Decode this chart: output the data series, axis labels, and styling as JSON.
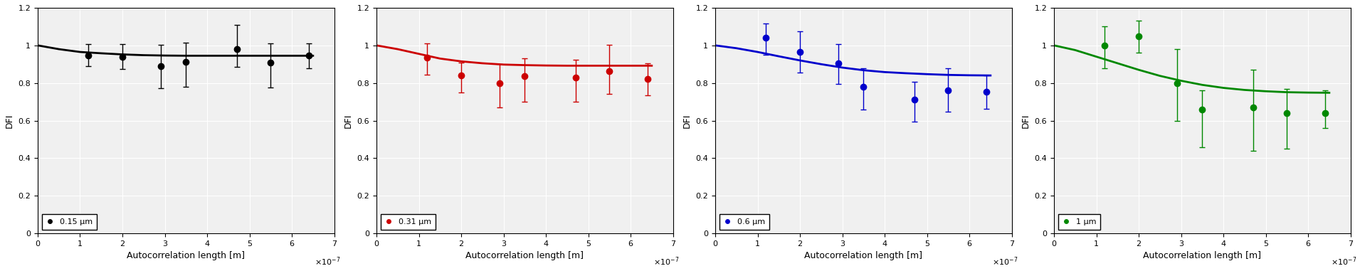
{
  "panels": [
    {
      "label": "0.15 μm",
      "color": "black",
      "x_data": [
        1.2e-07,
        2e-07,
        2.9e-07,
        3.5e-07,
        4.7e-07,
        5.5e-07,
        6.4e-07
      ],
      "y_data": [
        0.948,
        0.94,
        0.888,
        0.913,
        0.98,
        0.907,
        0.945
      ],
      "y_err_up": [
        0.06,
        0.065,
        0.115,
        0.1,
        0.13,
        0.105,
        0.065
      ],
      "y_err_dn": [
        0.06,
        0.065,
        0.115,
        0.135,
        0.095,
        0.13,
        0.065
      ],
      "curve_x": [
        0.0,
        5e-08,
        1e-07,
        1.5e-07,
        2e-07,
        2.5e-07,
        3e-07,
        3.5e-07,
        4e-07,
        4.5e-07,
        5e-07,
        5.5e-07,
        6e-07,
        6.5e-07
      ],
      "curve_y": [
        1.0,
        0.98,
        0.965,
        0.958,
        0.952,
        0.948,
        0.946,
        0.945,
        0.945,
        0.945,
        0.945,
        0.945,
        0.945,
        0.945
      ]
    },
    {
      "label": "0.31 μm",
      "color": "#cc0000",
      "x_data": [
        1.2e-07,
        2e-07,
        2.9e-07,
        3.5e-07,
        4.7e-07,
        5.5e-07,
        6.4e-07
      ],
      "y_data": [
        0.935,
        0.84,
        0.8,
        0.835,
        0.83,
        0.862,
        0.82
      ],
      "y_err_up": [
        0.075,
        0.07,
        0.1,
        0.095,
        0.095,
        0.14,
        0.085
      ],
      "y_err_dn": [
        0.09,
        0.09,
        0.13,
        0.135,
        0.13,
        0.12,
        0.085
      ],
      "curve_x": [
        0.0,
        5e-08,
        1e-07,
        1.5e-07,
        2e-07,
        2.5e-07,
        3e-07,
        3.5e-07,
        4e-07,
        4.5e-07,
        5e-07,
        5.5e-07,
        6e-07,
        6.5e-07
      ],
      "curve_y": [
        1.0,
        0.98,
        0.955,
        0.93,
        0.915,
        0.905,
        0.898,
        0.895,
        0.893,
        0.892,
        0.892,
        0.892,
        0.892,
        0.892
      ]
    },
    {
      "label": "0.6 μm",
      "color": "#0000cc",
      "x_data": [
        1.2e-07,
        2e-07,
        2.9e-07,
        3.5e-07,
        4.7e-07,
        5.5e-07,
        6.4e-07
      ],
      "y_data": [
        1.04,
        0.965,
        0.905,
        0.78,
        0.71,
        0.762,
        0.752
      ],
      "y_err_up": [
        0.075,
        0.11,
        0.1,
        0.1,
        0.095,
        0.115,
        0.09
      ],
      "y_err_dn": [
        0.09,
        0.11,
        0.11,
        0.12,
        0.115,
        0.115,
        0.09
      ],
      "curve_x": [
        0.0,
        5e-08,
        1e-07,
        1.5e-07,
        2e-07,
        2.5e-07,
        3e-07,
        3.5e-07,
        4e-07,
        4.5e-07,
        5e-07,
        5.5e-07,
        6e-07,
        6.5e-07
      ],
      "curve_y": [
        1.0,
        0.985,
        0.965,
        0.942,
        0.92,
        0.9,
        0.882,
        0.868,
        0.858,
        0.852,
        0.847,
        0.843,
        0.841,
        0.84
      ]
    },
    {
      "label": "1 μm",
      "color": "#008800",
      "x_data": [
        1.2e-07,
        2e-07,
        2.9e-07,
        3.5e-07,
        4.7e-07,
        5.5e-07,
        6.4e-07
      ],
      "y_data": [
        1.0,
        1.05,
        0.8,
        0.66,
        0.67,
        0.64,
        0.64
      ],
      "y_err_up": [
        0.1,
        0.08,
        0.18,
        0.1,
        0.2,
        0.13,
        0.12
      ],
      "y_err_dn": [
        0.12,
        0.09,
        0.2,
        0.2,
        0.23,
        0.19,
        0.08
      ],
      "curve_x": [
        0.0,
        5e-08,
        1e-07,
        1.5e-07,
        2e-07,
        2.5e-07,
        3e-07,
        3.5e-07,
        4e-07,
        4.5e-07,
        5e-07,
        5.5e-07,
        6e-07,
        6.5e-07
      ],
      "curve_y": [
        1.0,
        0.975,
        0.94,
        0.905,
        0.87,
        0.838,
        0.812,
        0.79,
        0.774,
        0.763,
        0.756,
        0.751,
        0.749,
        0.748
      ]
    }
  ],
  "xlim": [
    0,
    7e-07
  ],
  "ylim": [
    0,
    1.2
  ],
  "xlabel": "Autocorrelation length [m]",
  "ylabel": "DFI",
  "yticks": [
    0,
    0.2,
    0.4,
    0.6,
    0.8,
    1.0,
    1.2
  ],
  "xticks": [
    0,
    1e-07,
    2e-07,
    3e-07,
    4e-07,
    5e-07,
    6e-07,
    7e-07
  ],
  "xticklabels": [
    "0",
    "1",
    "2",
    "3",
    "4",
    "5",
    "6",
    "7"
  ],
  "background_color": "#f0f0f0",
  "marker_size": 6,
  "linewidth": 2.0,
  "tick_fontsize": 8,
  "label_fontsize": 9,
  "legend_fontsize": 8
}
